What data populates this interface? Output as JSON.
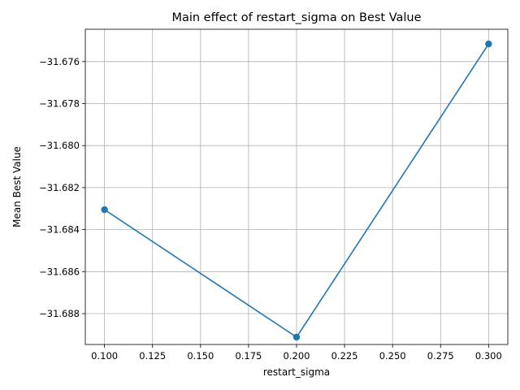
{
  "chart_data": {
    "type": "line",
    "title": "Main effect of restart_sigma on Best Value",
    "xlabel": "restart_sigma",
    "ylabel": "Mean Best Value",
    "x": [
      0.1,
      0.2,
      0.3
    ],
    "series": [
      {
        "values": [
          -31.68305,
          -31.68912,
          -31.67516
        ],
        "color": "#1f77b4",
        "marker": "circle"
      }
    ],
    "xlim": [
      0.09,
      0.31
    ],
    "ylim": [
      -31.68947,
      -31.67446
    ],
    "xticks": [
      0.1,
      0.125,
      0.15,
      0.175,
      0.2,
      0.225,
      0.25,
      0.275,
      0.3
    ],
    "xtick_labels": [
      "0.100",
      "0.125",
      "0.150",
      "0.175",
      "0.200",
      "0.225",
      "0.250",
      "0.275",
      "0.300"
    ],
    "yticks": [
      -31.688,
      -31.686,
      -31.684,
      -31.682,
      -31.68,
      -31.678,
      -31.676
    ],
    "ytick_labels": [
      "−31.688",
      "−31.686",
      "−31.684",
      "−31.682",
      "−31.680",
      "−31.678",
      "−31.676"
    ],
    "grid": true
  }
}
